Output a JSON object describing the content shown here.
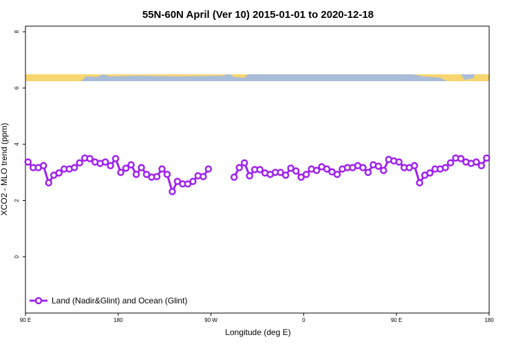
{
  "chart_data": {
    "type": "line",
    "title": "55N-60N April (Ver 10)   2015-01-01 to 2020-12-18",
    "xlabel": "Longitude (deg E)",
    "ylabel": "XCO2 - MLO trend (ppm)",
    "xlim": [
      90,
      540
    ],
    "ylim": [
      -2,
      8.2
    ],
    "xticks": [
      {
        "value": 90,
        "label": "90 E"
      },
      180,
      {
        "value": 270,
        "label": "90 W"
      },
      {
        "value": 360,
        "label": "0"
      },
      {
        "value": 450,
        "label": "90 E"
      },
      {
        "value": 540,
        "label": "180"
      }
    ],
    "yticks": [
      0,
      2,
      4,
      6,
      8
    ],
    "legend": "bottom-left",
    "x": [
      92.5,
      97.5,
      102.5,
      107.5,
      112.5,
      117.5,
      122.5,
      127.5,
      132.5,
      137.5,
      142.5,
      147.5,
      152.5,
      157.5,
      162.5,
      167.5,
      172.5,
      177.5,
      182.5,
      187.5,
      192.5,
      197.5,
      202.5,
      207.5,
      212.5,
      217.5,
      222.5,
      227.5,
      232.5,
      237.5,
      242.5,
      247.5,
      252.5,
      257.5,
      262.5,
      267.5,
      272.5,
      277.5,
      282.5,
      287.5,
      292.5,
      297.5,
      302.5,
      307.5,
      312.5,
      317.5,
      322.5,
      327.5,
      332.5,
      337.5,
      342.5,
      347.5,
      352.5,
      357.5,
      362.5,
      367.5,
      372.5,
      377.5,
      382.5,
      387.5,
      392.5,
      397.5,
      402.5,
      407.5,
      412.5,
      417.5,
      422.5,
      427.5,
      432.5,
      437.5,
      442.5,
      447.5,
      452.5,
      457.5,
      462.5,
      467.5,
      472.5,
      477.5,
      482.5,
      487.5,
      492.5,
      497.5,
      502.5,
      507.5,
      512.5,
      517.5,
      522.5,
      527.5,
      532.5,
      537.5
    ],
    "series": [
      {
        "name": "Land (Nadir&Glint) and Ocean (Glint)",
        "color": "#a020f0",
        "values": [
          3.37,
          3.17,
          3.17,
          3.24,
          2.63,
          2.9,
          2.98,
          3.12,
          3.12,
          3.17,
          3.34,
          3.51,
          3.49,
          3.37,
          3.32,
          3.37,
          3.24,
          3.49,
          3.0,
          3.15,
          3.27,
          2.93,
          3.17,
          2.93,
          2.83,
          2.85,
          3.12,
          2.93,
          2.32,
          2.68,
          2.59,
          2.59,
          2.68,
          2.88,
          2.85,
          3.12,
          null,
          null,
          null,
          null,
          2.83,
          3.17,
          3.34,
          2.88,
          3.1,
          3.1,
          2.98,
          2.93,
          3.0,
          3.0,
          2.9,
          3.15,
          3.05,
          2.83,
          2.93,
          3.12,
          3.07,
          3.2,
          3.12,
          3.02,
          2.93,
          3.12,
          3.17,
          3.17,
          3.24,
          3.17,
          3.0,
          3.27,
          3.22,
          3.07,
          3.46,
          3.41,
          3.37,
          3.17,
          3.17,
          3.24,
          2.63,
          2.9,
          2.98,
          3.12,
          3.12,
          3.17,
          3.34,
          3.51,
          3.49,
          3.37,
          3.32,
          3.37,
          3.24,
          3.51
        ]
      }
    ]
  }
}
